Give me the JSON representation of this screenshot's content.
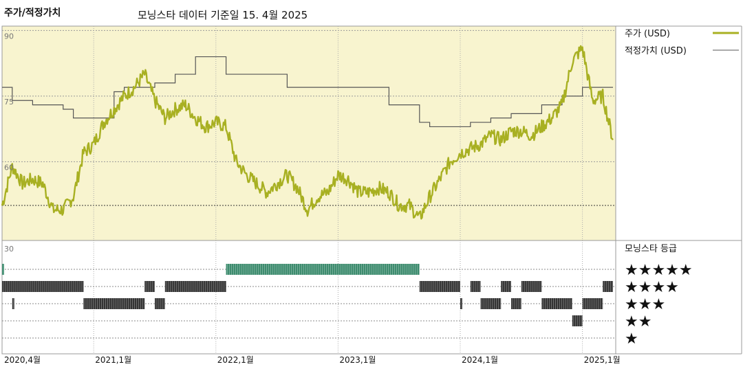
{
  "header": {
    "title": "주가/적정가치",
    "subtitle": "모닝스타 데이터 기준일 15. 4월 2025"
  },
  "legend": {
    "price_label": "주가 (USD)",
    "fair_value_label": "적정가치 (USD)",
    "rating_label": "모닝스타 등급",
    "stars": [
      "★★★★★",
      "★★★★",
      "★★★",
      "★★",
      "★"
    ]
  },
  "colors": {
    "price_line": "#a8b022",
    "fair_value_line": "#555555",
    "panel_bg": "#f8f4cf",
    "rating_5": "#3d8c6e",
    "rating_other": "#333333"
  },
  "chart_data": [
    {
      "type": "line",
      "title": "주가/적정가치",
      "ylim": [
        42,
        91
      ],
      "yticks": [
        "90",
        "75",
        "60"
      ],
      "x_ticks": [
        "2020,4월",
        "2021,1월",
        "2022,1월",
        "2023,1월",
        "2024,1월",
        "2025,1월"
      ],
      "x_range": [
        "2020-04",
        "2025-04"
      ],
      "series": [
        {
          "name": "주가 (USD)",
          "points": [
            [
              "2020-04",
              50
            ],
            [
              "2020-05",
              59
            ],
            [
              "2020-06",
              55
            ],
            [
              "2020-07",
              56
            ],
            [
              "2020-08",
              55
            ],
            [
              "2020-09",
              49
            ],
            [
              "2020-10",
              49
            ],
            [
              "2020-11",
              52
            ],
            [
              "2020-12",
              62
            ],
            [
              "2021-01",
              64
            ],
            [
              "2021-02",
              69
            ],
            [
              "2021-03",
              72
            ],
            [
              "2021-04",
              75
            ],
            [
              "2021-05",
              77
            ],
            [
              "2021-06",
              80
            ],
            [
              "2021-07",
              74
            ],
            [
              "2021-08",
              70
            ],
            [
              "2021-09",
              72
            ],
            [
              "2021-10",
              73
            ],
            [
              "2021-11",
              70
            ],
            [
              "2021-12",
              68
            ],
            [
              "2022-01",
              69
            ],
            [
              "2022-02",
              68
            ],
            [
              "2022-03",
              60
            ],
            [
              "2022-04",
              57
            ],
            [
              "2022-05",
              55
            ],
            [
              "2022-06",
              53
            ],
            [
              "2022-07",
              55
            ],
            [
              "2022-08",
              57
            ],
            [
              "2022-09",
              54
            ],
            [
              "2022-10",
              49
            ],
            [
              "2022-11",
              52
            ],
            [
              "2022-12",
              53
            ],
            [
              "2023-01",
              57
            ],
            [
              "2023-02",
              56
            ],
            [
              "2023-03",
              53
            ],
            [
              "2023-04",
              53
            ],
            [
              "2023-05",
              54
            ],
            [
              "2023-06",
              53
            ],
            [
              "2023-07",
              50
            ],
            [
              "2023-08",
              50
            ],
            [
              "2023-09",
              47
            ],
            [
              "2023-10",
              52
            ],
            [
              "2023-11",
              56
            ],
            [
              "2023-12",
              60
            ],
            [
              "2024-01",
              62
            ],
            [
              "2024-02",
              63
            ],
            [
              "2024-03",
              64
            ],
            [
              "2024-04",
              66
            ],
            [
              "2024-05",
              65
            ],
            [
              "2024-06",
              67
            ],
            [
              "2024-07",
              67
            ],
            [
              "2024-08",
              66
            ],
            [
              "2024-09",
              68
            ],
            [
              "2024-10",
              70
            ],
            [
              "2024-11",
              73
            ],
            [
              "2024-12",
              83
            ],
            [
              "2025-01",
              86
            ],
            [
              "2025-02",
              74
            ],
            [
              "2025-03",
              75
            ],
            [
              "2025-04",
              65
            ]
          ]
        },
        {
          "name": "적정가치 (USD)",
          "points": [
            [
              "2020-04",
              77
            ],
            [
              "2020-05",
              74
            ],
            [
              "2020-07",
              73
            ],
            [
              "2020-10",
              72
            ],
            [
              "2020-11",
              70
            ],
            [
              "2021-02",
              70
            ],
            [
              "2021-03",
              76
            ],
            [
              "2021-04",
              77
            ],
            [
              "2021-07",
              78
            ],
            [
              "2021-09",
              80
            ],
            [
              "2021-11",
              84
            ],
            [
              "2022-01",
              84
            ],
            [
              "2022-02",
              80
            ],
            [
              "2022-08",
              77
            ],
            [
              "2023-02",
              77
            ],
            [
              "2023-03",
              77
            ],
            [
              "2023-06",
              73
            ],
            [
              "2023-09",
              69
            ],
            [
              "2023-10",
              68
            ],
            [
              "2024-02",
              69
            ],
            [
              "2024-04",
              70
            ],
            [
              "2024-06",
              71
            ],
            [
              "2024-09",
              73
            ],
            [
              "2024-11",
              75
            ],
            [
              "2025-01",
              77
            ],
            [
              "2025-02",
              77
            ],
            [
              "2025-04",
              77
            ]
          ]
        }
      ]
    },
    {
      "type": "heatmap",
      "title": "모닝스타 등급",
      "categories": [
        "★★★★★",
        "★★★★",
        "★★★",
        "★★",
        "★"
      ],
      "ylim_label": "30",
      "periods": [
        {
          "rating": 5,
          "start": "2020-04",
          "end": "2020-04"
        },
        {
          "rating": 4,
          "start": "2020-04",
          "end": "2020-12"
        },
        {
          "rating": 3,
          "start": "2020-05",
          "end": "2020-05"
        },
        {
          "rating": 3,
          "start": "2020-12",
          "end": "2021-06"
        },
        {
          "rating": 4,
          "start": "2021-06",
          "end": "2021-07"
        },
        {
          "rating": 3,
          "start": "2021-07",
          "end": "2021-08"
        },
        {
          "rating": 4,
          "start": "2021-08",
          "end": "2022-02"
        },
        {
          "rating": 5,
          "start": "2022-02",
          "end": "2022-02"
        },
        {
          "rating": 5,
          "start": "2022-02",
          "end": "2023-09"
        },
        {
          "rating": 4,
          "start": "2023-09",
          "end": "2024-01"
        },
        {
          "rating": 4,
          "start": "2024-02",
          "end": "2024-03"
        },
        {
          "rating": 3,
          "start": "2024-01",
          "end": "2024-01"
        },
        {
          "rating": 3,
          "start": "2024-03",
          "end": "2024-05"
        },
        {
          "rating": 4,
          "start": "2024-05",
          "end": "2024-06"
        },
        {
          "rating": 3,
          "start": "2024-06",
          "end": "2024-07"
        },
        {
          "rating": 4,
          "start": "2024-07",
          "end": "2024-09"
        },
        {
          "rating": 3,
          "start": "2024-09",
          "end": "2024-12"
        },
        {
          "rating": 2,
          "start": "2024-12",
          "end": "2025-01"
        },
        {
          "rating": 3,
          "start": "2025-01",
          "end": "2025-03"
        },
        {
          "rating": 4,
          "start": "2025-03",
          "end": "2025-04"
        }
      ]
    }
  ]
}
